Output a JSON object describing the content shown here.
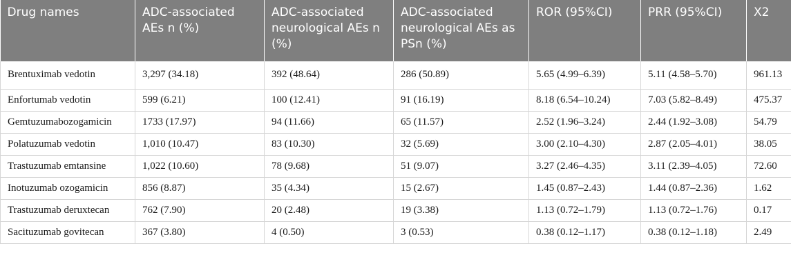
{
  "table": {
    "headers": [
      "Drug names",
      "ADC-associated AEs n (%)",
      "ADC-associated neurological AEs n (%)",
      "ADC-associated neurological AEs as PSn (%)",
      "ROR (95%CI)",
      "PRR (95%CI)",
      "X2"
    ],
    "rows": [
      [
        "Brentuximab vedotin",
        "3,297 (34.18)",
        "392 (48.64)",
        "286 (50.89)",
        "5.65 (4.99–6.39)",
        "5.11 (4.58–5.70)",
        "961.13"
      ],
      [
        "Enfortumab vedotin",
        "599 (6.21)",
        "100 (12.41)",
        "91 (16.19)",
        "8.18 (6.54–10.24)",
        "7.03 (5.82–8.49)",
        "475.37"
      ],
      [
        "Gemtuzumabozogamicin",
        "1733 (17.97)",
        "94 (11.66)",
        "65 (11.57)",
        "2.52 (1.96–3.24)",
        "2.44 (1.92–3.08)",
        "54.79"
      ],
      [
        "Polatuzumab vedotin",
        "1,010 (10.47)",
        "83 (10.30)",
        "32 (5.69)",
        "3.00 (2.10–4.30)",
        "2.87 (2.05–4.01)",
        "38.05"
      ],
      [
        "Trastuzumab emtansine",
        "1,022 (10.60)",
        "78 (9.68)",
        "51 (9.07)",
        "3.27 (2.46–4.35)",
        "3.11 (2.39–4.05)",
        "72.60"
      ],
      [
        "Inotuzumab ozogamicin",
        "856 (8.87)",
        "35 (4.34)",
        "15 (2.67)",
        "1.45 (0.87–2.43)",
        "1.44 (0.87–2.36)",
        "1.62"
      ],
      [
        "Trastuzumab deruxtecan",
        "762 (7.90)",
        "20 (2.48)",
        "19 (3.38)",
        "1.13 (0.72–1.79)",
        "1.13 (0.72–1.76)",
        "0.17"
      ],
      [
        "Sacituzumab govitecan",
        "367 (3.80)",
        "4 (0.50)",
        "3 (0.53)",
        "0.38 (0.12–1.17)",
        "0.38 (0.12–1.18)",
        "2.49"
      ]
    ]
  }
}
